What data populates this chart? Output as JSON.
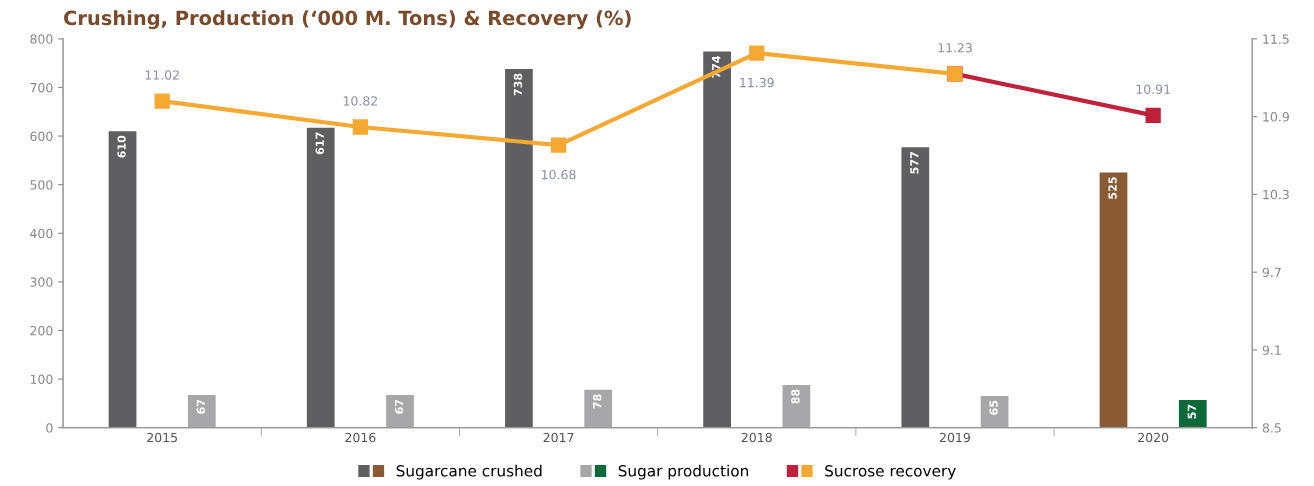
{
  "chart_data": {
    "type": "bar",
    "title": "Crushing, Production (‘000 M. Tons) & Recovery (%)",
    "categories": [
      "2015",
      "2016",
      "2017",
      "2018",
      "2019",
      "2020"
    ],
    "series": [
      {
        "name": "Sugarcane crushed",
        "colors": [
          "#5f5f61",
          "#5f5f61",
          "#5f5f61",
          "#5f5f61",
          "#5f5f61",
          "#8a5a34"
        ],
        "values": [
          610,
          617,
          738,
          774,
          577,
          525
        ]
      },
      {
        "name": "Sugar production",
        "colors": [
          "#a7a7a9",
          "#a7a7a9",
          "#a7a7a9",
          "#a7a7a9",
          "#a7a7a9",
          "#0a6a3a"
        ],
        "values": [
          67,
          67,
          78,
          88,
          65,
          57
        ]
      },
      {
        "name": "Sucrose recovery",
        "type": "line",
        "axis": "y2",
        "marker": "square",
        "color": "#f5a933",
        "values": [
          11.02,
          10.82,
          10.68,
          11.39,
          11.23,
          null
        ]
      },
      {
        "type": "line",
        "axis": "y2",
        "marker": "square",
        "color": "#c0213a",
        "values": [
          null,
          null,
          null,
          null,
          11.23,
          10.91
        ],
        "value_labels": [
          null,
          null,
          null,
          null,
          null,
          "10.91"
        ]
      }
    ],
    "ylim": [
      0,
      800
    ],
    "yticks": [
      0,
      100,
      200,
      300,
      400,
      500,
      600,
      700,
      800
    ],
    "y2lim": [
      8.5,
      11.5
    ],
    "y2ticks": [
      8.5,
      9.1,
      9.7,
      10.3,
      10.9,
      11.5
    ],
    "data_labels": true,
    "grid": false,
    "legend": "bottom"
  }
}
